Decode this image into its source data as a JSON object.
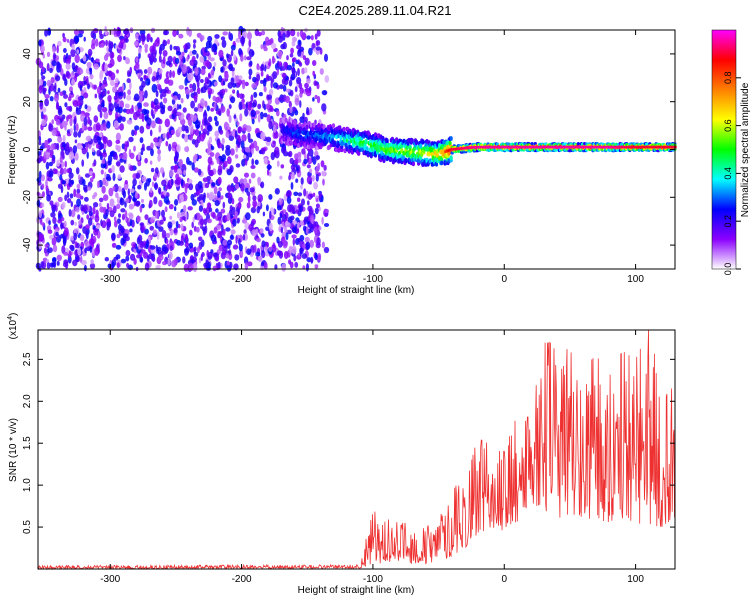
{
  "title": "C2E4.2025.289.11.04.R21",
  "chart_data": [
    {
      "type": "heatmap",
      "title": "C2E4.2025.289.11.04.R21",
      "xlabel": "Height of straight line (km)",
      "ylabel": "Frequency (Hz)",
      "xlim": [
        -355,
        130
      ],
      "ylim": [
        -50,
        50
      ],
      "x_ticks": [
        -300,
        -200,
        -100,
        0,
        100
      ],
      "y_ticks": [
        -40,
        -20,
        0,
        20,
        40
      ],
      "colorbar": {
        "label": "Normalized spectral amplitude",
        "range": [
          0.0,
          1.0
        ],
        "ticks": [
          "0.0",
          "0.2",
          "0.4",
          "0.6",
          "0.8"
        ],
        "colors": [
          "#ffffff",
          "#8b00ff",
          "#0000ff",
          "#00ffff",
          "#00ff00",
          "#ffff00",
          "#ff8000",
          "#ff0000",
          "#ff00ff"
        ]
      },
      "signal_track": {
        "x": [
          -170,
          -150,
          -130,
          -110,
          -90,
          -70,
          -50,
          -40,
          -20,
          0,
          20,
          40,
          60,
          80,
          100,
          120
        ],
        "frequency": [
          8,
          6,
          5,
          3,
          0,
          -1,
          -2,
          0,
          1,
          1,
          1,
          1,
          1,
          1,
          1,
          1
        ],
        "amplitude": [
          0.25,
          0.3,
          0.35,
          0.5,
          0.55,
          0.6,
          0.7,
          0.9,
          0.95,
          0.95,
          0.95,
          0.95,
          0.95,
          0.95,
          0.9,
          0.9
        ]
      },
      "noise_extent_x": [
        -355,
        -135
      ]
    },
    {
      "type": "line",
      "xlabel": "Height of straight line (km)",
      "ylabel": "SNR (10 * v/v)",
      "y_multiplier": "(x10",
      "y_multiplier_exp": "4",
      "y_multiplier_close": ")",
      "xlim": [
        -355,
        130
      ],
      "ylim": [
        0,
        2.85
      ],
      "x_ticks": [
        -300,
        -200,
        -100,
        0,
        100
      ],
      "y_ticks": [
        0.5,
        1.0,
        1.5,
        2.0,
        2.5
      ],
      "series": [
        {
          "color": "#ee3030",
          "envelope": {
            "x": [
              -355,
              -110,
              -100,
              -90,
              -80,
              -70,
              -60,
              -50,
              -40,
              -30,
              -20,
              -10,
              0,
              10,
              20,
              30,
              40,
              50,
              60,
              70,
              80,
              90,
              100,
              110,
              120,
              130
            ],
            "min": [
              0.0,
              0.01,
              0.05,
              0.08,
              0.1,
              0.06,
              0.05,
              0.1,
              0.15,
              0.25,
              0.4,
              0.5,
              0.45,
              0.55,
              0.8,
              0.7,
              0.6,
              0.65,
              0.6,
              0.6,
              0.55,
              0.6,
              0.55,
              0.5,
              0.5,
              0.6
            ],
            "max": [
              0.04,
              0.05,
              0.7,
              0.6,
              0.55,
              0.55,
              0.5,
              0.6,
              0.9,
              1.2,
              1.55,
              1.5,
              1.4,
              1.85,
              1.8,
              2.7,
              2.7,
              2.6,
              2.4,
              2.55,
              2.3,
              2.6,
              2.5,
              2.85,
              2.3,
              2.1
            ]
          }
        }
      ]
    }
  ]
}
